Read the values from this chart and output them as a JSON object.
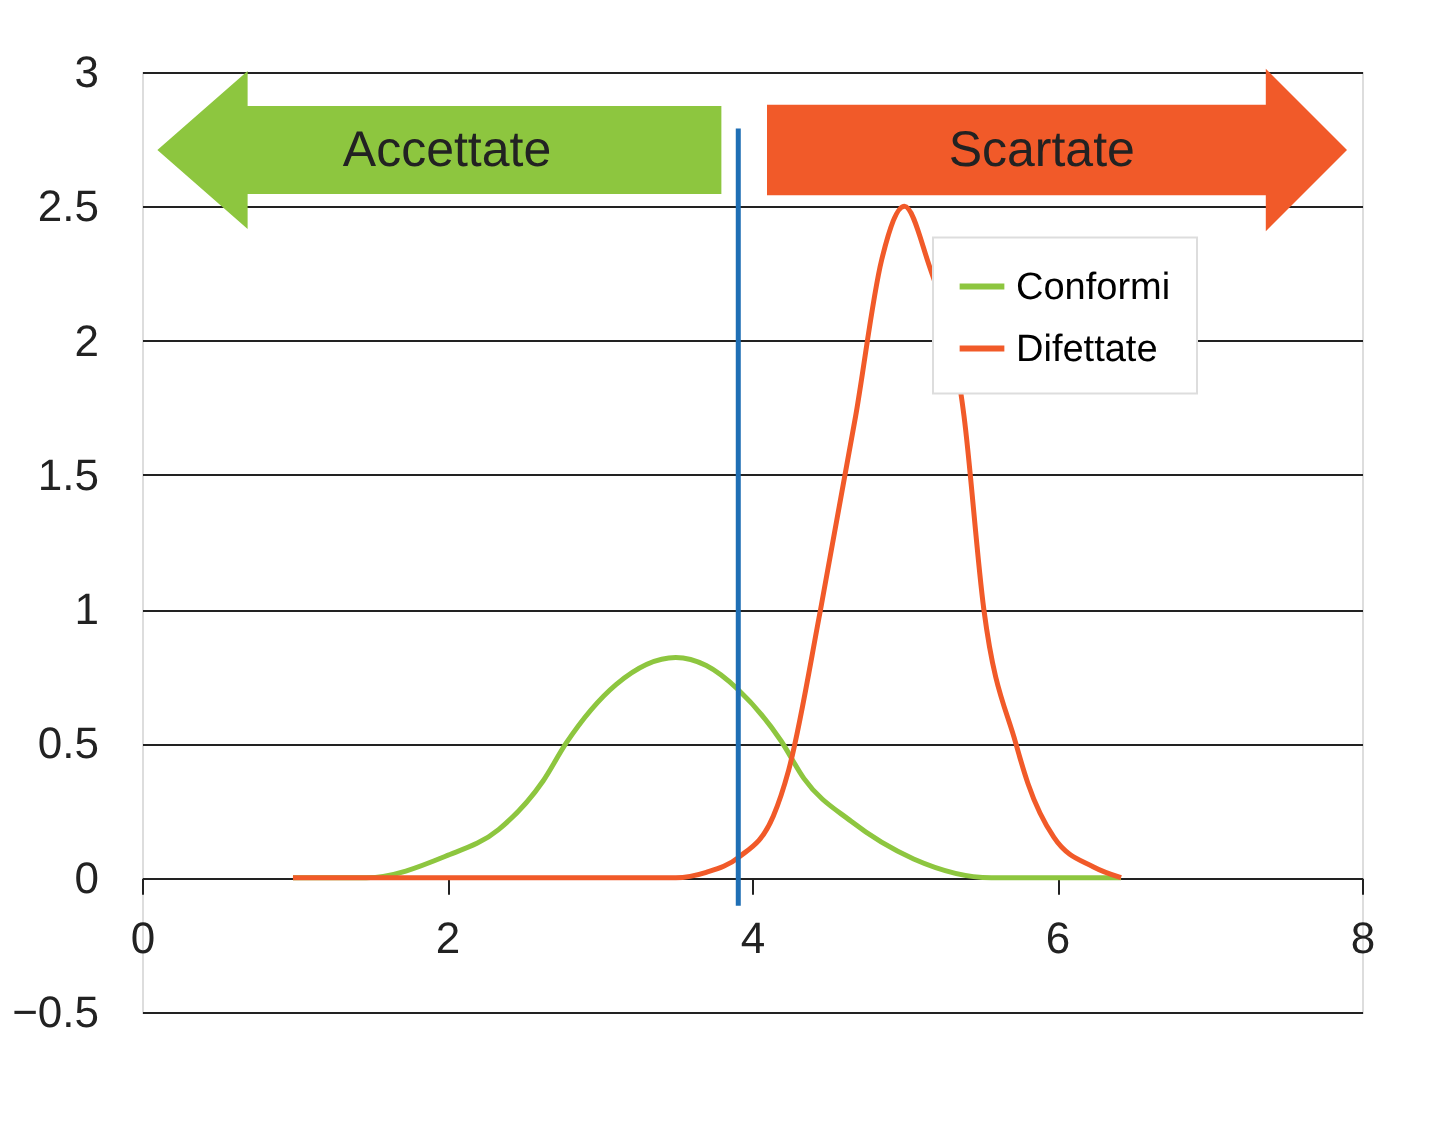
{
  "chart_data": {
    "type": "line",
    "xlim": [
      0,
      8
    ],
    "xticks": [
      0,
      2,
      4,
      6,
      8
    ],
    "ylim": [
      -0.5,
      3
    ],
    "yticks": [
      -0.5,
      0,
      0.5,
      1,
      1.5,
      2,
      2.5,
      3
    ],
    "grid": "y",
    "legend": "top right",
    "marker": "none",
    "line_style": "solid",
    "series": [
      {
        "name": "Conformi",
        "color": "#8dc63f",
        "x": [
          0.99,
          1.47,
          1.99,
          2.34,
          2.63,
          2.78,
          3.11,
          3.5,
          3.7,
          3.91,
          4.19,
          4.34,
          4.65,
          5.06,
          5.57,
          6.42
        ],
        "values": [
          0,
          0,
          0.08,
          0.18,
          0.36,
          0.5,
          0.72,
          0.82,
          0.79,
          0.7,
          0.51,
          0.37,
          0.21,
          0.07,
          0,
          0
        ]
      },
      {
        "name": "Difettate",
        "color": "#f15a29",
        "x": [
          0.99,
          3.5,
          3.7,
          3.91,
          4.14,
          4.24,
          4.45,
          4.68,
          4.85,
          5.0,
          5.15,
          5.39,
          5.52,
          5.73,
          5.81,
          5.98,
          6.24,
          6.42
        ],
        "values": [
          0,
          0,
          0.02,
          0.075,
          0.23,
          0.4,
          1.0,
          1.72,
          2.3,
          2.5,
          2.3,
          1.72,
          1.0,
          0.5,
          0.35,
          0.15,
          0.04,
          0
        ]
      }
    ],
    "ref_lines": [
      {
        "axis": "x",
        "value": 3.91,
        "color": "#1f6fb5"
      }
    ],
    "annotations": [
      "Accettate",
      "Scartate"
    ]
  }
}
